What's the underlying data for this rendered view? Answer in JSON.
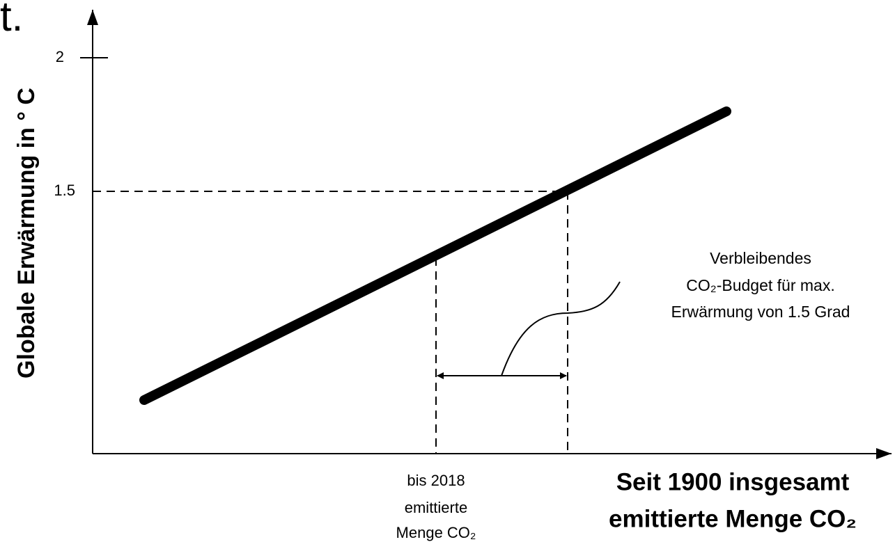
{
  "header_fragment": "t.",
  "y_axis": {
    "title": "Globale Erwärmung in ° C",
    "ticks": [
      2,
      1.5
    ]
  },
  "x_axis": {
    "title": [
      "Seit 1900 insgesamt",
      "emittierte Menge CO₂"
    ],
    "marker_label": [
      "bis 2018",
      "emittierte",
      "Menge CO₂"
    ]
  },
  "annotation": [
    "Verbleibendes",
    "CO₂-Budget für max.",
    "Erwärmung von 1.5 Grad"
  ]
}
